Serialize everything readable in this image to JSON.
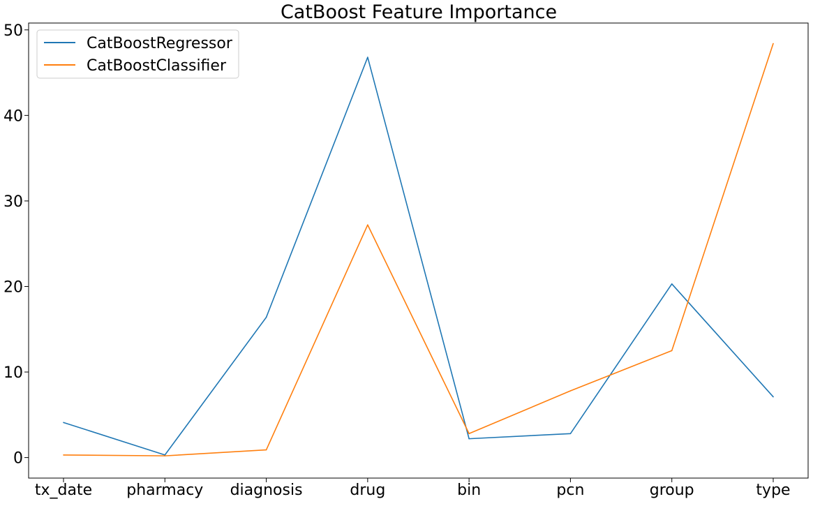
{
  "chart_data": {
    "type": "line",
    "title": "CatBoost Feature Importance",
    "xlabel": "",
    "ylabel": "",
    "categories": [
      "tx_date",
      "pharmacy",
      "diagnosis",
      "drug",
      "bin",
      "pcn",
      "group",
      "type"
    ],
    "ylim": [
      -2.4,
      50.8
    ],
    "yticks": [
      0,
      10,
      20,
      30,
      40,
      50
    ],
    "grid": false,
    "legend_position": "top-left",
    "series": [
      {
        "name": "CatBoostRegressor",
        "color": "#1f77b4",
        "values": [
          4.1,
          0.3,
          16.4,
          46.8,
          2.2,
          2.8,
          20.3,
          7.1
        ]
      },
      {
        "name": "CatBoostClassifier",
        "color": "#ff7f0e",
        "values": [
          0.3,
          0.2,
          0.9,
          27.2,
          2.8,
          7.8,
          12.5,
          48.4
        ]
      }
    ]
  }
}
